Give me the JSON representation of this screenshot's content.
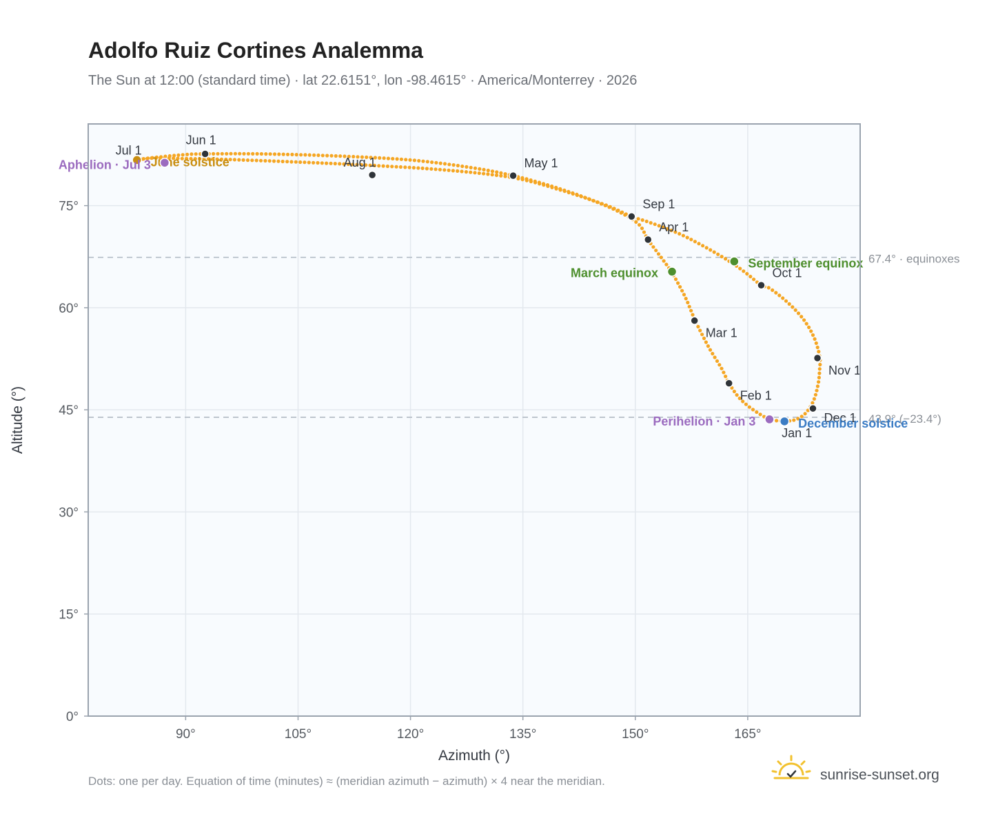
{
  "header": {
    "title": "Adolfo Ruiz Cortines Analemma",
    "subtitle": "The Sun at 12:00 (standard time) · lat 22.6151°, lon -98.4615° · America/Monterrey · 2026"
  },
  "footer": {
    "note": "Dots: one per day. Equation of time (minutes) ≈ (meridian azimuth − azimuth) × 4 near the meridian.",
    "brand": "sunrise-sunset.org"
  },
  "colors": {
    "curve": "#f5a623",
    "month_dot": "#2f3439",
    "equinox": "#4e8f2e",
    "december_solstice": "#3b7cc4",
    "june_solstice": "#c98e10",
    "apsis": "#9b6bbf",
    "plot_bg": "#f8fbfe",
    "grid": "#e3e8ee",
    "frame": "#9aa3ae",
    "ref_line": "#b9c1ca"
  },
  "chart_data": {
    "type": "scatter",
    "xlabel": "Azimuth (°)",
    "ylabel": "Altitude (°)",
    "xlim": [
      77,
      180
    ],
    "ylim": [
      0,
      87
    ],
    "xticks": [
      90,
      105,
      120,
      135,
      150,
      165
    ],
    "xtick_labels": [
      "90°",
      "105°",
      "120°",
      "135°",
      "150°",
      "165°"
    ],
    "yticks": [
      0,
      15,
      30,
      45,
      60,
      75
    ],
    "ytick_labels": [
      "0°",
      "15°",
      "30°",
      "45°",
      "60°",
      "75°"
    ],
    "grid": true,
    "reference_lines": [
      {
        "y": 67.4,
        "label": "67.4° · equinoxes"
      },
      {
        "y": 43.9,
        "label": "43.9° (−23.4°)"
      }
    ],
    "analemma_path": [
      [
        170.0,
        43.3
      ],
      [
        171.5,
        43.6
      ],
      [
        172.8,
        44.6
      ],
      [
        173.8,
        46.4
      ],
      [
        174.4,
        48.8
      ],
      [
        174.6,
        51.0
      ],
      [
        174.6,
        52.8
      ],
      [
        173.9,
        55.5
      ],
      [
        172.5,
        58.2
      ],
      [
        170.4,
        60.7
      ],
      [
        168.0,
        62.8
      ],
      [
        166.8,
        63.3
      ],
      [
        165.0,
        64.9
      ],
      [
        163.0,
        66.5
      ],
      [
        160.0,
        68.5
      ],
      [
        156.0,
        70.8
      ],
      [
        152.0,
        72.5
      ],
      [
        149.5,
        73.4
      ],
      [
        146.0,
        75.1
      ],
      [
        140.0,
        77.3
      ],
      [
        133.7,
        79.1
      ],
      [
        125.0,
        80.2
      ],
      [
        115.0,
        80.9
      ],
      [
        105.0,
        81.4
      ],
      [
        95.0,
        81.8
      ],
      [
        90.0,
        81.9
      ],
      [
        86.0,
        82.0
      ],
      [
        84.0,
        81.8
      ],
      [
        83.5,
        81.7
      ],
      [
        84.5,
        81.9
      ],
      [
        87.0,
        82.2
      ],
      [
        90.0,
        82.5
      ],
      [
        92.5,
        82.6
      ],
      [
        100.0,
        82.6
      ],
      [
        110.0,
        82.3
      ],
      [
        120.0,
        81.7
      ],
      [
        128.0,
        80.6
      ],
      [
        133.7,
        79.4
      ],
      [
        139.0,
        77.8
      ],
      [
        144.0,
        75.9
      ],
      [
        148.0,
        74.0
      ],
      [
        150.5,
        72.2
      ],
      [
        151.7,
        70.0
      ],
      [
        153.3,
        67.6
      ],
      [
        154.8,
        65.3
      ],
      [
        156.6,
        61.7
      ],
      [
        158.0,
        58.1
      ],
      [
        159.8,
        54.2
      ],
      [
        161.5,
        51.1
      ],
      [
        162.5,
        48.9
      ],
      [
        164.0,
        46.6
      ],
      [
        166.0,
        44.8
      ],
      [
        168.0,
        43.6
      ],
      [
        170.0,
        43.3
      ]
    ],
    "month_markers": [
      {
        "label": "Jan 1",
        "az": 169.9,
        "alt": 43.4
      },
      {
        "label": "Feb 1",
        "az": 162.5,
        "alt": 48.9
      },
      {
        "label": "Mar 1",
        "az": 157.9,
        "alt": 58.1
      },
      {
        "label": "Apr 1",
        "az": 151.7,
        "alt": 70.0
      },
      {
        "label": "May 1",
        "az": 133.7,
        "alt": 79.4
      },
      {
        "label": "Jun 1",
        "az": 92.6,
        "alt": 82.6
      },
      {
        "label": "Jul 1",
        "az": 83.5,
        "alt": 81.7
      },
      {
        "label": "Aug 1",
        "az": 114.9,
        "alt": 79.5
      },
      {
        "label": "Sep 1",
        "az": 149.5,
        "alt": 73.4
      },
      {
        "label": "Oct 1",
        "az": 166.8,
        "alt": 63.3
      },
      {
        "label": "Nov 1",
        "az": 174.3,
        "alt": 52.6
      },
      {
        "label": "Dec 1",
        "az": 173.7,
        "alt": 45.2
      }
    ],
    "events": [
      {
        "label": "March equinox",
        "az": 154.9,
        "alt": 65.3,
        "color_key": "equinox",
        "anchor": "end"
      },
      {
        "label": "September equinox",
        "az": 163.2,
        "alt": 66.8,
        "color_key": "equinox",
        "anchor": "start"
      },
      {
        "label": "December solstice",
        "az": 169.9,
        "alt": 43.3,
        "color_key": "december_solstice",
        "anchor": "start"
      },
      {
        "label": "June solstice",
        "az": 83.5,
        "alt": 81.7,
        "color_key": "june_solstice",
        "anchor": "start"
      },
      {
        "label": "Perihelion · Jan 3",
        "az": 167.9,
        "alt": 43.6,
        "color_key": "apsis",
        "anchor": "end"
      },
      {
        "label": "Aphelion · Jul 3",
        "az": 87.2,
        "alt": 81.3,
        "color_key": "apsis",
        "anchor": "end"
      }
    ]
  }
}
